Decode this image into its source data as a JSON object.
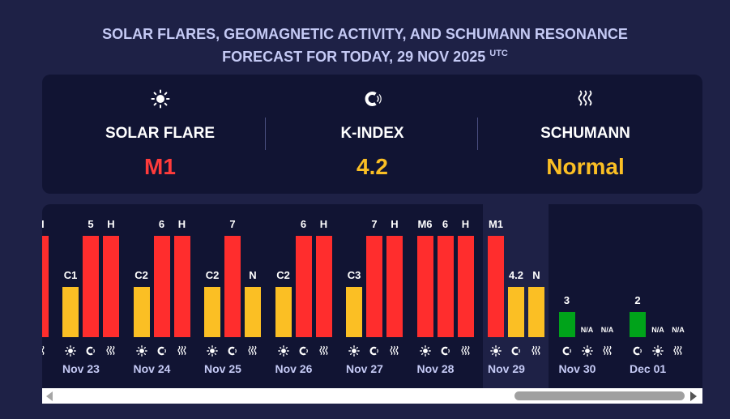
{
  "title": {
    "line1": "SOLAR FLARES, GEOMAGNETIC ACTIVITY, AND SCHUMANN RESONANCE",
    "line2": "FORECAST FOR TODAY, 29 NOV 2025",
    "sup": "UTC"
  },
  "summary": {
    "solar": {
      "icon": "sun-icon",
      "label": "SOLAR FLARE",
      "value": "M1",
      "color": "#ff3b3b"
    },
    "kindex": {
      "icon": "magnet-icon",
      "label": "K-INDEX",
      "value": "4.2",
      "color": "#fbbf24"
    },
    "schumann": {
      "icon": "wave-icon",
      "label": "SCHUMANN",
      "value": "Normal",
      "color": "#fbbf24"
    }
  },
  "colors": {
    "red": "#ff2d2d",
    "yellow": "#fbbf24",
    "green": "#00a31a",
    "bg": "#1e2146",
    "panel": "#111433"
  },
  "history": {
    "partial_day": {
      "label": "H",
      "level": "high"
    },
    "days": [
      {
        "date": "Nov 23",
        "flare": "C1",
        "flare_level": "mid",
        "kp": "5",
        "kp_level": "high",
        "sch": "H",
        "sch_level": "high"
      },
      {
        "date": "Nov 24",
        "flare": "C2",
        "flare_level": "mid",
        "kp": "6",
        "kp_level": "high",
        "sch": "H",
        "sch_level": "high"
      },
      {
        "date": "Nov 25",
        "flare": "C2",
        "flare_level": "mid",
        "kp": "7",
        "kp_level": "high",
        "sch": "N",
        "sch_level": "mid"
      },
      {
        "date": "Nov 26",
        "flare": "C2",
        "flare_level": "mid",
        "kp": "6",
        "kp_level": "high",
        "sch": "H",
        "sch_level": "high"
      },
      {
        "date": "Nov 27",
        "flare": "C3",
        "flare_level": "mid",
        "kp": "7",
        "kp_level": "high",
        "sch": "H",
        "sch_level": "high"
      },
      {
        "date": "Nov 28",
        "flare": "M6",
        "flare_level": "high",
        "kp": "6",
        "kp_level": "high",
        "sch": "H",
        "sch_level": "high"
      },
      {
        "date": "Nov 29",
        "flare": "M1",
        "flare_level": "high",
        "kp": "4.2",
        "kp_level": "mid",
        "sch": "N",
        "sch_level": "mid"
      }
    ],
    "forecast": [
      {
        "date": "Nov 30",
        "kp": "3",
        "kp_level": "low",
        "flare": "N/A",
        "sch": "N/A"
      },
      {
        "date": "Dec 01",
        "kp": "2",
        "kp_level": "low",
        "flare": "N/A",
        "sch": "N/A"
      }
    ]
  }
}
